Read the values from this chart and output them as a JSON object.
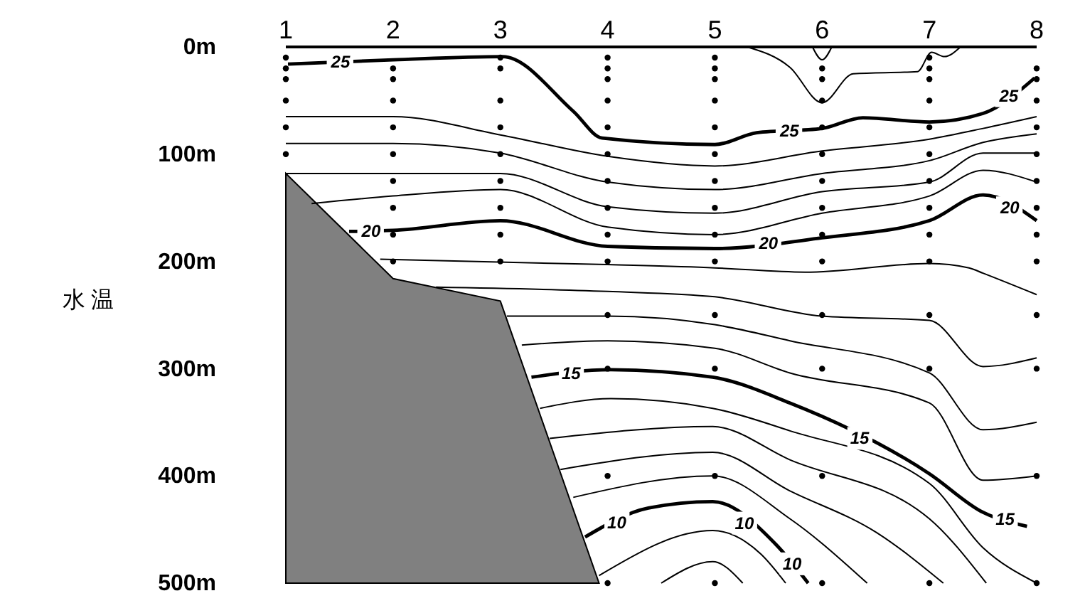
{
  "chart_data": {
    "type": "line",
    "ylabel": "水 温",
    "xlim": [
      1,
      8
    ],
    "ylim": [
      500,
      0
    ],
    "xticks": [
      1,
      2,
      3,
      4,
      5,
      6,
      7,
      8
    ],
    "yticks": [
      {
        "value": 0,
        "label": "0m"
      },
      {
        "value": 100,
        "label": "100m"
      },
      {
        "value": 200,
        "label": "200m"
      },
      {
        "value": 300,
        "label": "300m"
      },
      {
        "value": 400,
        "label": "400m"
      },
      {
        "value": 500,
        "label": "500m"
      }
    ],
    "grid": false,
    "series": [
      {
        "type": "area",
        "color": "#808080",
        "x": [
          1,
          1,
          2,
          3,
          3.92
        ],
        "values": [
          500,
          118,
          216,
          237,
          500
        ]
      },
      {
        "name": "25",
        "color": "#000000",
        "x": [
          1.02,
          2,
          3.02,
          3.68,
          3.95,
          5,
          5.39,
          6,
          6.38,
          7,
          7.5,
          7.98
        ],
        "values": [
          16,
          12,
          9,
          60,
          85,
          91,
          80,
          76,
          66,
          70,
          62,
          29
        ]
      },
      {
        "color": "#000000",
        "x": [
          5.3,
          5.7,
          6,
          6.29,
          6.89,
          7.02,
          7.14,
          7.29
        ],
        "values": [
          0,
          19,
          52,
          25,
          23,
          5,
          9,
          0
        ]
      },
      {
        "color": "#000000",
        "x": [
          5.91,
          6,
          6.09
        ],
        "values": [
          0,
          12,
          0
        ]
      },
      {
        "color": "#000000",
        "x": [
          1,
          2,
          3,
          4,
          5,
          6,
          7,
          7.5,
          8
        ],
        "values": [
          65,
          65,
          82,
          102,
          111,
          97,
          86,
          76,
          65
        ]
      },
      {
        "color": "#000000",
        "x": [
          1,
          2,
          3,
          4,
          5,
          6,
          7,
          7.5,
          8
        ],
        "values": [
          90,
          90,
          99,
          126,
          133,
          118,
          106,
          89,
          81
        ]
      },
      {
        "color": "#000000",
        "x": [
          1,
          2,
          3,
          4,
          5,
          6,
          7,
          7.5,
          8
        ],
        "values": [
          118,
          118,
          118,
          149,
          155,
          135,
          126,
          99,
          99
        ]
      },
      {
        "color": "#000000",
        "x": [
          1.24,
          2,
          3,
          4,
          5,
          6,
          7,
          7.5,
          8
        ],
        "values": [
          146,
          139,
          133,
          168,
          175,
          155,
          139,
          115,
          126
        ]
      },
      {
        "name": "20",
        "color": "#000000",
        "x": [
          1.59,
          2,
          3,
          4,
          5,
          6,
          7,
          7.5,
          8
        ],
        "values": [
          172,
          171,
          162,
          186,
          188,
          178,
          162,
          138,
          162
        ]
      },
      {
        "color": "#000000",
        "x": [
          1.88,
          4,
          5,
          5.84,
          7,
          7.37,
          7.5,
          8
        ],
        "values": [
          198,
          203,
          206,
          210,
          202,
          206,
          211,
          231
        ]
      },
      {
        "color": "#000000",
        "x": [
          2.4,
          4,
          5,
          6,
          7,
          7.5,
          8
        ],
        "values": [
          224,
          228,
          233,
          251,
          255,
          298,
          290
        ]
      },
      {
        "color": "#000000",
        "x": [
          3.06,
          4,
          5,
          5.7,
          7,
          7.5,
          8
        ],
        "values": [
          251,
          251,
          259,
          274,
          304,
          357,
          350
        ]
      },
      {
        "color": "#000000",
        "x": [
          3.2,
          4,
          5,
          5.7,
          7,
          7.5,
          8
        ],
        "values": [
          278,
          274,
          281,
          304,
          332,
          404,
          400
        ]
      },
      {
        "name": "15",
        "color": "#000000",
        "x": [
          3.29,
          4.03,
          4.98,
          5.7,
          7,
          7.5,
          7.91
        ],
        "values": [
          308,
          301,
          308,
          332,
          398,
          434,
          447
        ]
      },
      {
        "color": "#000000",
        "x": [
          3.37,
          4.03,
          4.98,
          5.7,
          7,
          7.5,
          8
        ],
        "values": [
          337,
          328,
          337,
          358,
          407,
          467,
          500
        ]
      },
      {
        "color": "#000000",
        "x": [
          3.46,
          4.98,
          5.7,
          7,
          7.53
        ],
        "values": [
          365,
          354,
          385,
          440,
          500
        ]
      },
      {
        "color": "#000000",
        "x": [
          3.56,
          4.98,
          5.7,
          6.51,
          7.13
        ],
        "values": [
          394,
          378,
          414,
          453,
          500
        ]
      },
      {
        "color": "#000000",
        "x": [
          3.68,
          4.98,
          5.7,
          6.42
        ],
        "values": [
          420,
          400,
          440,
          500
        ]
      },
      {
        "name": "10",
        "color": "#000000",
        "x": [
          3.79,
          4.38,
          4.98,
          5.57,
          5.87
        ],
        "values": [
          457,
          430,
          424,
          464,
          500
        ]
      },
      {
        "color": "#000000",
        "x": [
          3.92,
          4.98,
          5.43,
          5.66
        ],
        "values": [
          493,
          451,
          473,
          500
        ]
      },
      {
        "color": "#000000",
        "x": [
          4.5,
          4.98,
          5.26
        ],
        "values": [
          500,
          480,
          500
        ]
      },
      {
        "type": "scatter",
        "marker": "circle",
        "color": "#000000",
        "x": [
          1,
          1,
          1,
          1,
          1,
          1,
          2,
          2,
          2,
          2,
          2,
          2,
          2,
          2,
          2,
          3,
          3,
          3,
          3,
          3,
          3,
          3,
          3,
          3,
          4,
          4,
          4,
          4,
          4,
          4,
          4,
          4,
          4,
          4,
          4,
          4,
          4,
          4,
          5,
          5,
          5,
          5,
          5,
          5,
          5,
          5,
          5,
          5,
          5,
          5,
          5,
          5,
          6,
          6,
          6,
          6,
          6,
          6,
          6,
          6,
          6,
          6,
          6,
          6,
          6,
          7,
          7,
          7,
          7,
          7,
          7,
          7,
          7,
          7,
          7,
          7,
          7,
          7,
          8,
          8,
          8,
          8,
          8,
          8,
          8,
          8,
          8,
          8,
          8,
          8,
          8
        ],
        "values": [
          10,
          20,
          30,
          50,
          75,
          100,
          20,
          30,
          50,
          75,
          100,
          125,
          150,
          175,
          200,
          10,
          20,
          50,
          75,
          100,
          125,
          150,
          175,
          200,
          10,
          20,
          30,
          50,
          75,
          100,
          125,
          150,
          175,
          200,
          250,
          300,
          400,
          500,
          10,
          20,
          30,
          50,
          75,
          100,
          125,
          150,
          175,
          200,
          250,
          300,
          400,
          500,
          20,
          30,
          50,
          75,
          100,
          125,
          150,
          175,
          200,
          250,
          300,
          400,
          500,
          10,
          20,
          30,
          50,
          75,
          100,
          125,
          150,
          175,
          200,
          250,
          300,
          500,
          20,
          30,
          50,
          75,
          100,
          125,
          150,
          175,
          200,
          250,
          300,
          400,
          500
        ]
      }
    ]
  }
}
